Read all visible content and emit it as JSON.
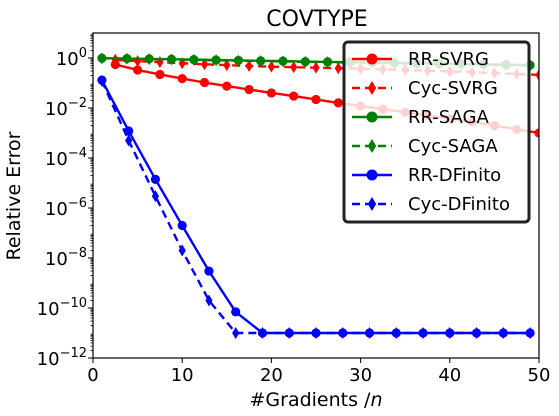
{
  "chart_data": {
    "type": "line",
    "title": "COVTYPE",
    "xlabel": "#Gradients /",
    "xlabel_italic": "n",
    "ylabel": "Relative Error",
    "xlim": [
      0,
      50
    ],
    "ylim_log10": [
      -12,
      1
    ],
    "yscale": "log",
    "x_ticks": [
      0,
      10,
      20,
      30,
      40,
      50
    ],
    "x_tick_labels": [
      "0",
      "10",
      "20",
      "30",
      "40",
      "50"
    ],
    "y_ticks_log10": [
      -12,
      -10,
      -8,
      -6,
      -4,
      -2,
      0
    ],
    "y_tick_labels": [
      {
        "base": "10",
        "exp": "−12"
      },
      {
        "base": "10",
        "exp": "−10"
      },
      {
        "base": "10",
        "exp": "−8"
      },
      {
        "base": "10",
        "exp": "−6"
      },
      {
        "base": "10",
        "exp": "−4"
      },
      {
        "base": "10",
        "exp": "−2"
      },
      {
        "base": "10",
        "exp": "0"
      }
    ],
    "grid": false,
    "legend_position": "top-right",
    "series": [
      {
        "name": "RR-SVRG",
        "color": "#ff0000",
        "dash": "solid",
        "marker": "circle",
        "x": [
          2.5,
          5,
          7.5,
          10,
          12.5,
          15,
          17.5,
          20,
          22.5,
          25,
          27.5,
          30,
          32.5,
          35,
          37.5,
          40,
          42.5,
          45,
          47.5,
          50
        ],
        "y": [
          0.55,
          0.33,
          0.22,
          0.15,
          0.105,
          0.075,
          0.055,
          0.04,
          0.03,
          0.022,
          0.016,
          0.012,
          0.009,
          0.0068,
          0.005,
          0.0037,
          0.0028,
          0.002,
          0.0014,
          0.001
        ]
      },
      {
        "name": "Cyc-SVRG",
        "color": "#ff0000",
        "dash": "dashed",
        "marker": "diamond",
        "x": [
          2.5,
          5,
          7.5,
          10,
          12.5,
          15,
          17.5,
          20,
          22.5,
          25,
          27.5,
          30,
          32.5,
          35,
          37.5,
          40,
          42.5,
          45,
          47.5,
          50
        ],
        "y": [
          0.85,
          0.75,
          0.68,
          0.62,
          0.56,
          0.52,
          0.48,
          0.45,
          0.43,
          0.41,
          0.39,
          0.37,
          0.35,
          0.33,
          0.31,
          0.29,
          0.27,
          0.25,
          0.23,
          0.21
        ]
      },
      {
        "name": "RR-SAGA",
        "color": "#008000",
        "dash": "solid",
        "marker": "circle",
        "x": [
          1,
          3.8,
          6.3,
          8.8,
          11.3,
          13.8,
          16.3,
          18.8,
          21.3,
          23.8,
          26.3,
          28.8,
          31.3,
          33.8,
          36.3,
          38.8,
          41.3,
          43.8,
          46.3,
          49
        ],
        "y": [
          0.98,
          0.95,
          0.92,
          0.89,
          0.86,
          0.83,
          0.8,
          0.77,
          0.75,
          0.72,
          0.7,
          0.68,
          0.66,
          0.64,
          0.62,
          0.6,
          0.58,
          0.56,
          0.54,
          0.52
        ]
      },
      {
        "name": "Cyc-SAGA",
        "color": "#008000",
        "dash": "dashed",
        "marker": "diamond",
        "x": [
          1,
          3.8,
          6.3,
          8.8,
          11.3,
          13.8,
          16.3,
          18.8,
          21.3,
          23.8,
          26.3,
          28.8,
          31.3,
          33.8,
          36.3,
          38.8,
          41.3,
          43.8,
          46.3,
          49
        ],
        "y": [
          0.97,
          0.94,
          0.9,
          0.87,
          0.84,
          0.81,
          0.78,
          0.75,
          0.73,
          0.7,
          0.68,
          0.66,
          0.64,
          0.62,
          0.6,
          0.58,
          0.56,
          0.54,
          0.52,
          0.5
        ]
      },
      {
        "name": "RR-DFinito",
        "color": "#0000ff",
        "dash": "solid",
        "marker": "circle",
        "x": [
          1,
          4,
          7,
          10,
          13,
          16,
          19,
          22,
          25,
          28,
          31,
          34,
          37,
          40,
          43,
          46,
          49
        ],
        "y": [
          0.13,
          0.0012,
          1.4e-05,
          2e-07,
          3e-09,
          7e-11,
          1e-11,
          1e-11,
          1e-11,
          1e-11,
          1e-11,
          1e-11,
          1e-11,
          1e-11,
          1e-11,
          1e-11,
          1e-11
        ]
      },
      {
        "name": "Cyc-DFinito",
        "color": "#0000ff",
        "dash": "dashed",
        "marker": "diamond",
        "x": [
          1,
          4,
          7,
          10,
          13,
          16,
          19,
          22,
          25,
          28,
          31,
          34,
          37,
          40,
          43,
          46,
          49
        ],
        "y": [
          0.12,
          0.0005,
          3e-06,
          2e-08,
          2e-10,
          1e-11,
          1e-11,
          1e-11,
          1e-11,
          1e-11,
          1e-11,
          1e-11,
          1e-11,
          1e-11,
          1e-11,
          1e-11,
          1e-11
        ]
      }
    ]
  }
}
